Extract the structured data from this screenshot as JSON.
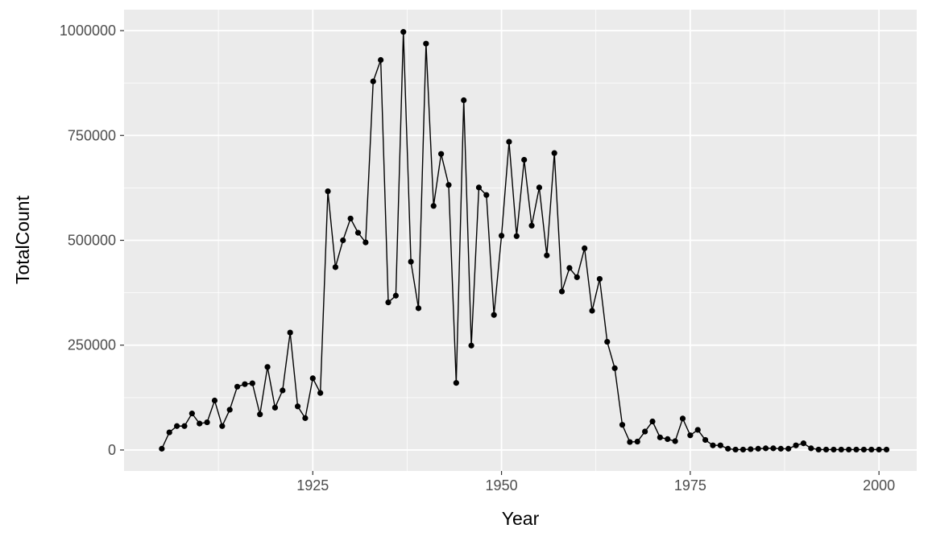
{
  "chart_data": {
    "type": "line",
    "xlabel": "Year",
    "ylabel": "TotalCount",
    "xlim": [
      1900,
      2005
    ],
    "ylim": [
      -50000,
      1050000
    ],
    "x_ticks": [
      1925,
      1950,
      1975,
      2000
    ],
    "y_ticks": [
      0,
      250000,
      500000,
      750000,
      1000000
    ],
    "x_minor": [
      1912.5,
      1937.5,
      1962.5,
      1987.5
    ],
    "y_minor": [
      125000,
      375000,
      625000,
      875000
    ],
    "grid": true,
    "markers": true,
    "colors": {
      "panel": "#ebebeb",
      "grid": "#ffffff",
      "line": "#000000",
      "tick_text": "#4d4d4d",
      "title_text": "#000000"
    },
    "series": [
      {
        "x": [
          1905,
          1906,
          1907,
          1908,
          1909,
          1910,
          1911,
          1912,
          1913,
          1914,
          1915,
          1916,
          1917,
          1918,
          1919,
          1920,
          1921,
          1922,
          1923,
          1924,
          1925,
          1926,
          1927,
          1928,
          1929,
          1930,
          1931,
          1932,
          1933,
          1934,
          1935,
          1936,
          1937,
          1938,
          1939,
          1940,
          1941,
          1942,
          1943,
          1944,
          1945,
          1946,
          1947,
          1948,
          1949,
          1950,
          1951,
          1952,
          1953,
          1954,
          1955,
          1956,
          1957,
          1958,
          1959,
          1960,
          1961,
          1962,
          1963,
          1964,
          1965,
          1966,
          1967,
          1968,
          1969,
          1970,
          1971,
          1972,
          1973,
          1974,
          1975,
          1976,
          1977,
          1978,
          1979,
          1980,
          1981,
          1982,
          1983,
          1984,
          1985,
          1986,
          1987,
          1988,
          1989,
          1990,
          1991,
          1992,
          1993,
          1994,
          1995,
          1996,
          1997,
          1998,
          1999,
          2000,
          2001
        ],
        "values": [
          3000,
          42000,
          57000,
          57000,
          87000,
          63000,
          66000,
          118000,
          57000,
          96000,
          151000,
          157000,
          159000,
          85000,
          198000,
          101000,
          142000,
          280000,
          104000,
          76000,
          171000,
          136000,
          617000,
          436000,
          500000,
          552000,
          518000,
          495000,
          879000,
          930000,
          352000,
          368000,
          997000,
          449000,
          338000,
          969000,
          582000,
          706000,
          632000,
          160000,
          834000,
          249000,
          626000,
          608000,
          322000,
          511000,
          735000,
          510000,
          692000,
          535000,
          626000,
          464000,
          708000,
          378000,
          434000,
          412000,
          481000,
          332000,
          408000,
          258000,
          195000,
          60000,
          19000,
          20000,
          44000,
          68000,
          30000,
          26000,
          21000,
          75000,
          35000,
          48000,
          24000,
          11000,
          11000,
          3000,
          1000,
          1000,
          2000,
          3000,
          4000,
          4000,
          3000,
          3000,
          11000,
          16000,
          4000,
          1000,
          1000,
          1000,
          1000,
          1000,
          1000,
          1000,
          1000,
          1000,
          1000
        ]
      }
    ]
  }
}
